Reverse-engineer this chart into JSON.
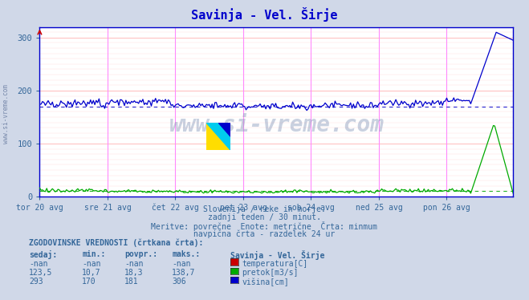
{
  "title": "Savinja - Vel. Širje",
  "title_color": "#0000cc",
  "bg_color": "#d0d8e8",
  "plot_bg_color": "#ffffff",
  "grid_color_h": "#ffbbbb",
  "grid_color_v": "#ff88ff",
  "x_tick_labels": [
    "tor 20 avg",
    "sre 21 avg",
    "čet 22 avg",
    "pet 23 avg",
    "sob 24 avg",
    "ned 25 avg",
    "pon 26 avg"
  ],
  "y_ticks": [
    0,
    100,
    200,
    300
  ],
  "y_min": 0,
  "y_max": 320,
  "n_points": 336,
  "temperatura_color": "#cc0000",
  "pretok_color": "#00aa00",
  "visina_color": "#0000cc",
  "watermark": "www.si-vreme.com",
  "watermark_color": "#8899bb",
  "subtitle1": "Slovenija / reke in morje.",
  "subtitle2": "zadnji teden / 30 minut.",
  "subtitle3": "Meritve: povrečne  Enote: metrične  Črta: minmum",
  "subtitle4": "navpična črta - razdelek 24 ur",
  "subtitle_color": "#336699",
  "table_header": "ZGODOVINSKE VREDNOSTI (črtkana črta):",
  "col_headers": [
    "sedaj:",
    "min.:",
    "povpr.:",
    "maks.:"
  ],
  "row1": [
    "-nan",
    "-nan",
    "-nan",
    "-nan"
  ],
  "row2": [
    "123,5",
    "10,7",
    "18,3",
    "138,7"
  ],
  "row3": [
    "293",
    "170",
    "181",
    "306"
  ],
  "legend_title": "Savinja - Vel. Širje",
  "legend_items": [
    "temperatura[C]",
    "pretok[m3/s]",
    "višina[cm]"
  ],
  "legend_colors": [
    "#cc0000",
    "#00aa00",
    "#0000cc"
  ],
  "left_label": "www.si-vreme.com",
  "left_label_color": "#7788aa",
  "axis_color": "#0000cc",
  "arrow_color": "#cc0000"
}
